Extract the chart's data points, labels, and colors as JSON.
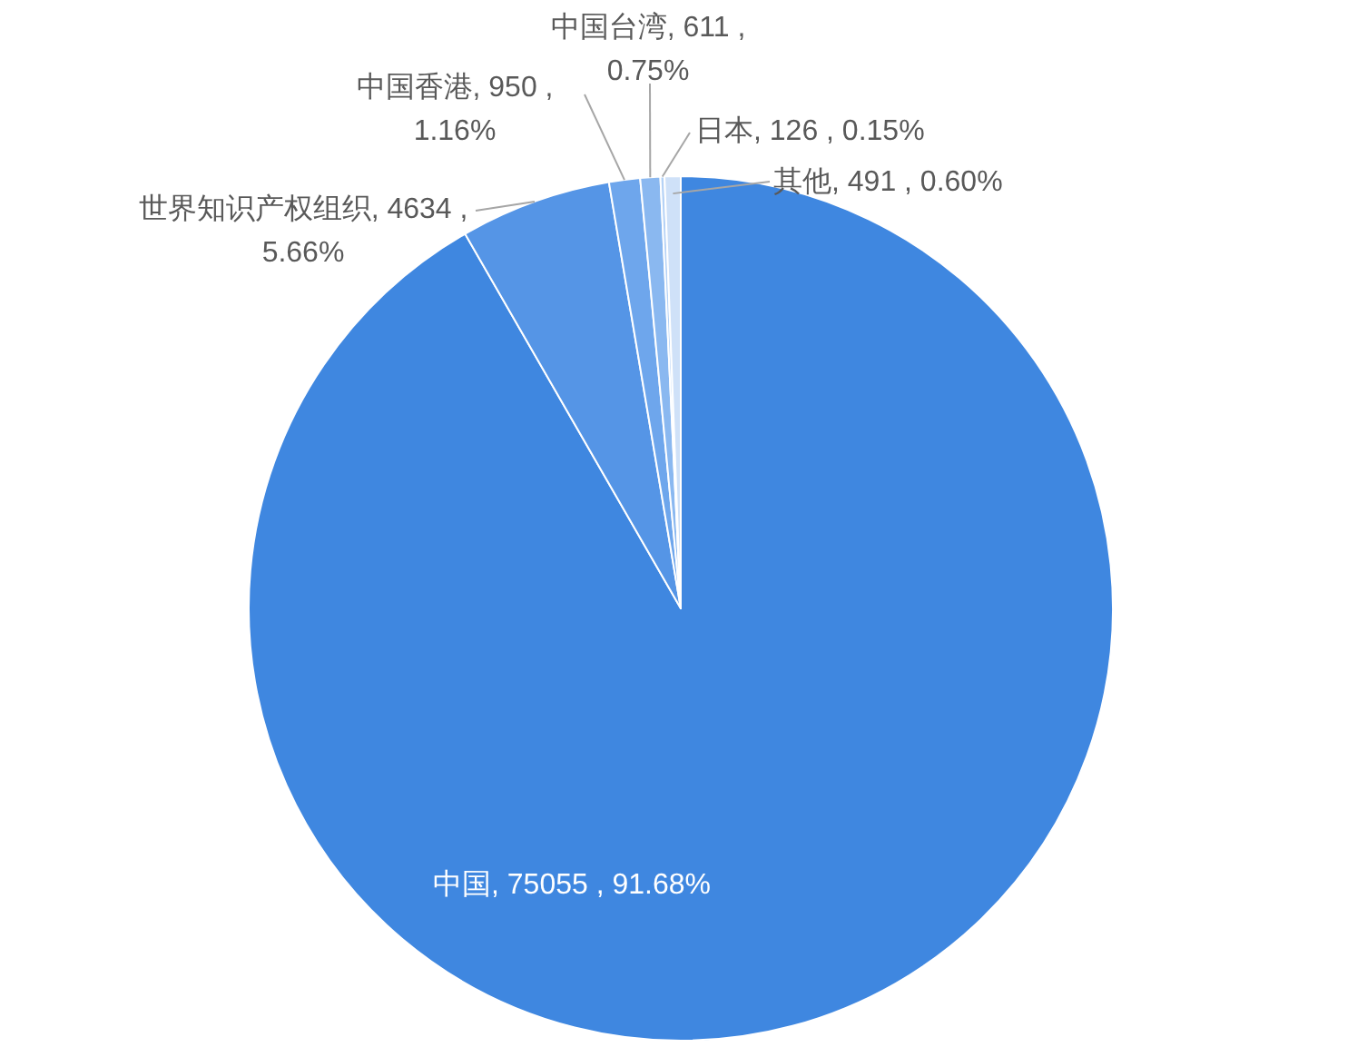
{
  "chart_data": {
    "type": "pie",
    "categories": [
      "中国",
      "世界知识产权组织",
      "中国香港",
      "中国台湾",
      "日本",
      "其他"
    ],
    "values": [
      75055,
      4634,
      950,
      611,
      126,
      491
    ],
    "colors": [
      "#3f87e0",
      "#5595e6",
      "#6ea6ec",
      "#8ab8f0",
      "#b5d2f6",
      "#cfe1f8"
    ],
    "value_labels": [
      "75055 , 91.68%",
      "4634 , 5.66%",
      "950 , 1.16%",
      "611 , 0.75%",
      "126 , 0.15%",
      "491 , 0.60%"
    ],
    "legend": false
  }
}
